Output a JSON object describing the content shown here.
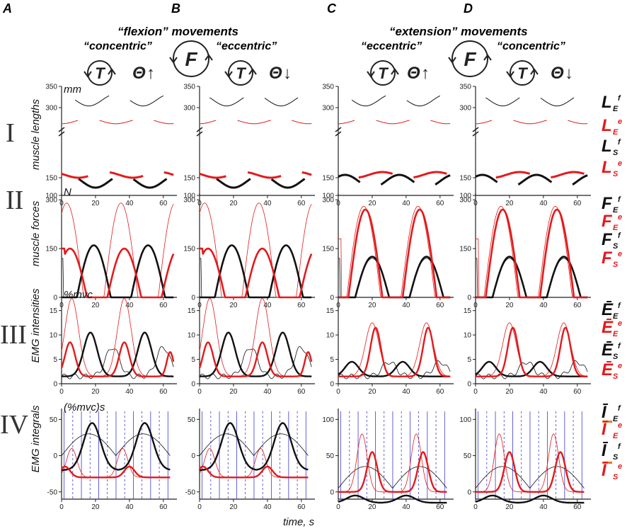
{
  "column_letters": [
    "A",
    "B",
    "C",
    "D"
  ],
  "headings": {
    "flexion": "“flexion” movements",
    "extension": "“extension” movements",
    "concentric": "“concentric”",
    "eccentric": "“eccentric”"
  },
  "symbols": {
    "torque": "T",
    "force": "F",
    "angle": "Θ",
    "up": "↑",
    "down": "↓"
  },
  "x_axis_label": "time, s",
  "colors": {
    "extensor": "#e31a1c",
    "flexor": "#111111",
    "grid_solid": "#3a3ad8",
    "grid_dashed": "#3a3ad8",
    "bar": "#e8742a"
  },
  "chart_data": [
    {
      "row": "I",
      "type": "line",
      "ylabel": "muscle lengths",
      "unit": "mm",
      "xlim": [
        0,
        68
      ],
      "xticks": [
        0,
        20,
        40,
        60
      ],
      "yticks_upper": [
        300,
        350
      ],
      "yticks_lower": [
        100,
        150
      ],
      "axis_break": true,
      "legend": [
        {
          "sym": "L",
          "sub": "E",
          "sup": "f",
          "color": "flexor"
        },
        {
          "sym": "L",
          "sub": "E",
          "sup": "e",
          "color": "extensor"
        },
        {
          "sym": "L",
          "sub": "S",
          "sup": "f",
          "color": "flexor"
        },
        {
          "sym": "L",
          "sub": "S",
          "sup": "e",
          "color": "extensor"
        }
      ]
    },
    {
      "row": "II",
      "type": "line",
      "ylabel": "muscle forces",
      "unit": "N",
      "ylim": [
        0,
        320
      ],
      "yticks": [
        0,
        150,
        300
      ],
      "xlim": [
        0,
        68
      ],
      "xticks": [
        0,
        20,
        40,
        60
      ],
      "legend": [
        {
          "sym": "F",
          "sub": "E",
          "sup": "f",
          "color": "flexor"
        },
        {
          "sym": "F",
          "sub": "E",
          "sup": "e",
          "color": "extensor"
        },
        {
          "sym": "F",
          "sub": "S",
          "sup": "f",
          "color": "flexor"
        },
        {
          "sym": "F",
          "sub": "S",
          "sup": "e",
          "color": "extensor"
        }
      ]
    },
    {
      "row": "III",
      "type": "line",
      "ylabel": "EMG intensities",
      "unit": "%mvc",
      "ylim": [
        0,
        18
      ],
      "yticks": [
        0,
        5,
        10,
        15
      ],
      "xlim": [
        0,
        68
      ],
      "xticks": [
        0,
        20,
        40,
        60
      ],
      "legend": [
        {
          "sym": "Ē",
          "sub": "E",
          "sup": "f",
          "color": "flexor"
        },
        {
          "sym": "Ē",
          "sub": "E",
          "sup": "e",
          "color": "extensor"
        },
        {
          "sym": "Ē",
          "sub": "S",
          "sup": "f",
          "color": "flexor"
        },
        {
          "sym": "Ē",
          "sub": "S",
          "sup": "e",
          "color": "extensor"
        }
      ]
    },
    {
      "row": "IV",
      "type": "line",
      "ylabel": "EMG integrals",
      "unit": "(%mvc)s",
      "xlim": [
        0,
        68
      ],
      "xticks": [
        0,
        20,
        40,
        60
      ],
      "yticks_by_col": [
        [
          -50,
          0,
          50
        ],
        [
          -50,
          0,
          50
        ],
        [
          0,
          50,
          100
        ],
        [
          0,
          50,
          100
        ]
      ],
      "legend": [
        {
          "sym": "Ī",
          "sub": "E",
          "sup": "f",
          "color": "flexor"
        },
        {
          "sym": "Ī",
          "sub": "E",
          "sup": "e",
          "color": "extensor"
        },
        {
          "sym": "Ī",
          "sub": "S",
          "sup": "f",
          "color": "flexor"
        },
        {
          "sym": "Ī",
          "sub": "S",
          "sup": "e",
          "color": "extensor"
        }
      ]
    }
  ]
}
